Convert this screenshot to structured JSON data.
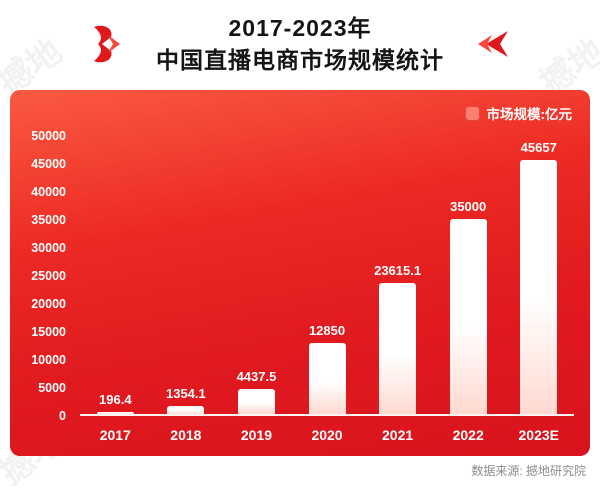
{
  "header": {
    "title_line1": "2017-2023年",
    "title_line2": "中国直播电商市场规模统计"
  },
  "legend": {
    "label": "市场规模:亿元"
  },
  "source": {
    "label": "数据来源: 撼地研究院"
  },
  "watermark": {
    "text": "撼地"
  },
  "colors": {
    "accent_red": "#e0181c",
    "panel_top": "#fa5a41",
    "panel_bottom": "#d8131d",
    "bar_white": "#ffffff",
    "title_text": "#151515"
  },
  "chart_data": {
    "type": "bar",
    "title": "2017-2023年中国直播电商市场规模统计",
    "categories": [
      "2017",
      "2018",
      "2019",
      "2020",
      "2021",
      "2022",
      "2023E"
    ],
    "values": [
      196.4,
      1354.1,
      4437.5,
      12850,
      23615.1,
      35000,
      45657
    ],
    "value_labels": [
      "196.4",
      "1354.1",
      "4437.5",
      "12850",
      "23615.1",
      "35000",
      "45657"
    ],
    "xlabel": "",
    "ylabel": "亿元",
    "ylim": [
      0,
      50000
    ],
    "yticks": [
      0,
      5000,
      10000,
      15000,
      20000,
      25000,
      30000,
      35000,
      40000,
      45000,
      50000
    ],
    "legend": [
      "市场规模:亿元"
    ],
    "legend_position": "top-right",
    "grid": false
  }
}
